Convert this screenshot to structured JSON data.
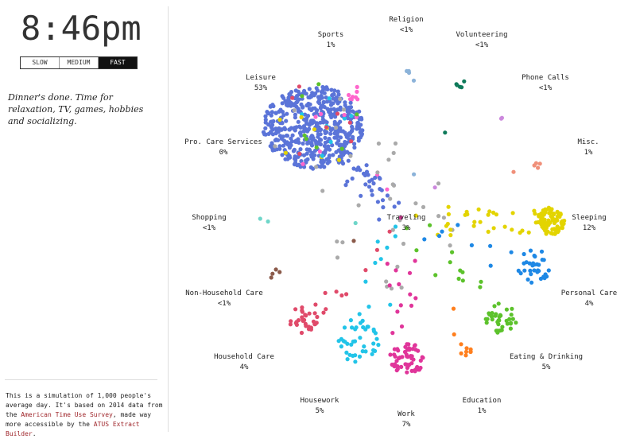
{
  "clock": {
    "time": "8:46pm"
  },
  "speed": {
    "options": [
      "SLOW",
      "MEDIUM",
      "FAST"
    ],
    "selected": "FAST"
  },
  "description": "Dinner's done. Time for relaxation, TV, games, hobbies and socializing.",
  "footer": {
    "text_1": "This is a simulation of ",
    "count": "1,000",
    "text_2": " people's average day. It's based on 2014 data from the ",
    "link_1": "American Time Use Survey",
    "text_3": ", made way more accessible by the ",
    "link_2": "ATUS Extract Builder",
    "text_4": "."
  },
  "activities": [
    {
      "id": "religion",
      "name": "Religion",
      "pct": "<1%",
      "color": "#8cb3d9",
      "count": 5
    },
    {
      "id": "sports",
      "name": "Sports",
      "pct": "1%",
      "color": "#ff66cc",
      "count": 10
    },
    {
      "id": "volunteering",
      "name": "Volunteering",
      "pct": "<1%",
      "color": "#0f7a5a",
      "count": 6
    },
    {
      "id": "phone-calls",
      "name": "Phone Calls",
      "pct": "<1%",
      "color": "#cc88dd",
      "count": 3
    },
    {
      "id": "leisure",
      "name": "Leisure",
      "pct": "53%",
      "color": "#5b74d8",
      "count": 530
    },
    {
      "id": "misc",
      "name": "Misc.",
      "pct": "1%",
      "color": "#f0907a",
      "count": 5
    },
    {
      "id": "pro-care",
      "name": "Pro. Care Services",
      "pct": "0%",
      "color": "#8cd1c3",
      "count": 0
    },
    {
      "id": "shopping",
      "name": "Shopping",
      "pct": "<1%",
      "color": "#6fd6c9",
      "count": 3
    },
    {
      "id": "traveling",
      "name": "Traveling",
      "pct": "3%",
      "color": "#aaaaaa",
      "count": 30
    },
    {
      "id": "sleeping",
      "name": "Sleeping",
      "pct": "12%",
      "color": "#e3d400",
      "count": 120
    },
    {
      "id": "non-household-care",
      "name": "Non-Household Care",
      "pct": "<1%",
      "color": "#8b5a4a",
      "count": 5
    },
    {
      "id": "personal-care",
      "name": "Personal Care",
      "pct": "4%",
      "color": "#1e88e5",
      "count": 40
    },
    {
      "id": "household-care",
      "name": "Household Care",
      "pct": "4%",
      "color": "#e04a6a",
      "count": 40
    },
    {
      "id": "eating-drinking",
      "name": "Eating & Drinking",
      "pct": "5%",
      "color": "#5cc22b",
      "count": 50
    },
    {
      "id": "housework",
      "name": "Housework",
      "pct": "5%",
      "color": "#22c4e8",
      "count": 50
    },
    {
      "id": "education",
      "name": "Education",
      "pct": "1%",
      "color": "#ff7f1e",
      "count": 10
    },
    {
      "id": "work",
      "name": "Work",
      "pct": "7%",
      "color": "#e0359a",
      "count": 70
    }
  ]
}
